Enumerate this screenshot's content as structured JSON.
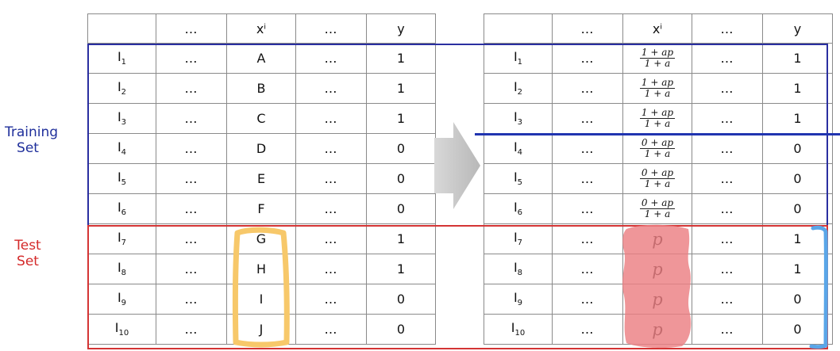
{
  "labels": {
    "training": "Training\nSet",
    "test": "Test\nSet"
  },
  "headers": [
    "",
    "…",
    "xⁱ",
    "…",
    "y"
  ],
  "left_rows": [
    {
      "id": "I",
      "sub": "1",
      "dots1": "…",
      "xi": "A",
      "dots2": "…",
      "y": "1"
    },
    {
      "id": "I",
      "sub": "2",
      "dots1": "…",
      "xi": "B",
      "dots2": "…",
      "y": "1"
    },
    {
      "id": "I",
      "sub": "3",
      "dots1": "…",
      "xi": "C",
      "dots2": "…",
      "y": "1"
    },
    {
      "id": "I",
      "sub": "4",
      "dots1": "…",
      "xi": "D",
      "dots2": "…",
      "y": "0"
    },
    {
      "id": "I",
      "sub": "5",
      "dots1": "…",
      "xi": "E",
      "dots2": "…",
      "y": "0"
    },
    {
      "id": "I",
      "sub": "6",
      "dots1": "…",
      "xi": "F",
      "dots2": "…",
      "y": "0"
    },
    {
      "id": "I",
      "sub": "7",
      "dots1": "…",
      "xi": "G",
      "dots2": "…",
      "y": "1"
    },
    {
      "id": "I",
      "sub": "8",
      "dots1": "…",
      "xi": "H",
      "dots2": "…",
      "y": "1"
    },
    {
      "id": "I",
      "sub": "9",
      "dots1": "…",
      "xi": "I",
      "dots2": "…",
      "y": "0"
    },
    {
      "id": "I",
      "sub": "10",
      "dots1": "…",
      "xi": "J",
      "dots2": "…",
      "y": "0"
    }
  ],
  "right_rows": [
    {
      "id": "I",
      "sub": "1",
      "dots1": "…",
      "num": "1 + ap",
      "den": "1 + a",
      "dots2": "…",
      "y": "1"
    },
    {
      "id": "I",
      "sub": "2",
      "dots1": "…",
      "num": "1 + ap",
      "den": "1 + a",
      "dots2": "…",
      "y": "1"
    },
    {
      "id": "I",
      "sub": "3",
      "dots1": "…",
      "num": "1 + ap",
      "den": "1 + a",
      "dots2": "…",
      "y": "1"
    },
    {
      "id": "I",
      "sub": "4",
      "dots1": "…",
      "num": "0 + ap",
      "den": "1 + a",
      "dots2": "…",
      "y": "0"
    },
    {
      "id": "I",
      "sub": "5",
      "dots1": "…",
      "num": "0 + ap",
      "den": "1 + a",
      "dots2": "…",
      "y": "0"
    },
    {
      "id": "I",
      "sub": "6",
      "dots1": "…",
      "num": "0 + ap",
      "den": "1 + a",
      "dots2": "…",
      "y": "0"
    },
    {
      "id": "I",
      "sub": "7",
      "dots1": "…",
      "p": "p",
      "dots2": "…",
      "y": "1"
    },
    {
      "id": "I",
      "sub": "8",
      "dots1": "…",
      "p": "p",
      "dots2": "…",
      "y": "1"
    },
    {
      "id": "I",
      "sub": "9",
      "dots1": "…",
      "p": "p",
      "dots2": "…",
      "y": "0"
    },
    {
      "id": "I",
      "sub": "10",
      "dots1": "…",
      "p": "p",
      "dots2": "…",
      "y": "0"
    }
  ],
  "colors": {
    "training": "#2a2fa0",
    "test": "#d43434",
    "yellow": "#f7c86a",
    "pink": "#eb7f82",
    "blue_mark": "#5aa6e8",
    "arrow": "#c8c8c8"
  }
}
